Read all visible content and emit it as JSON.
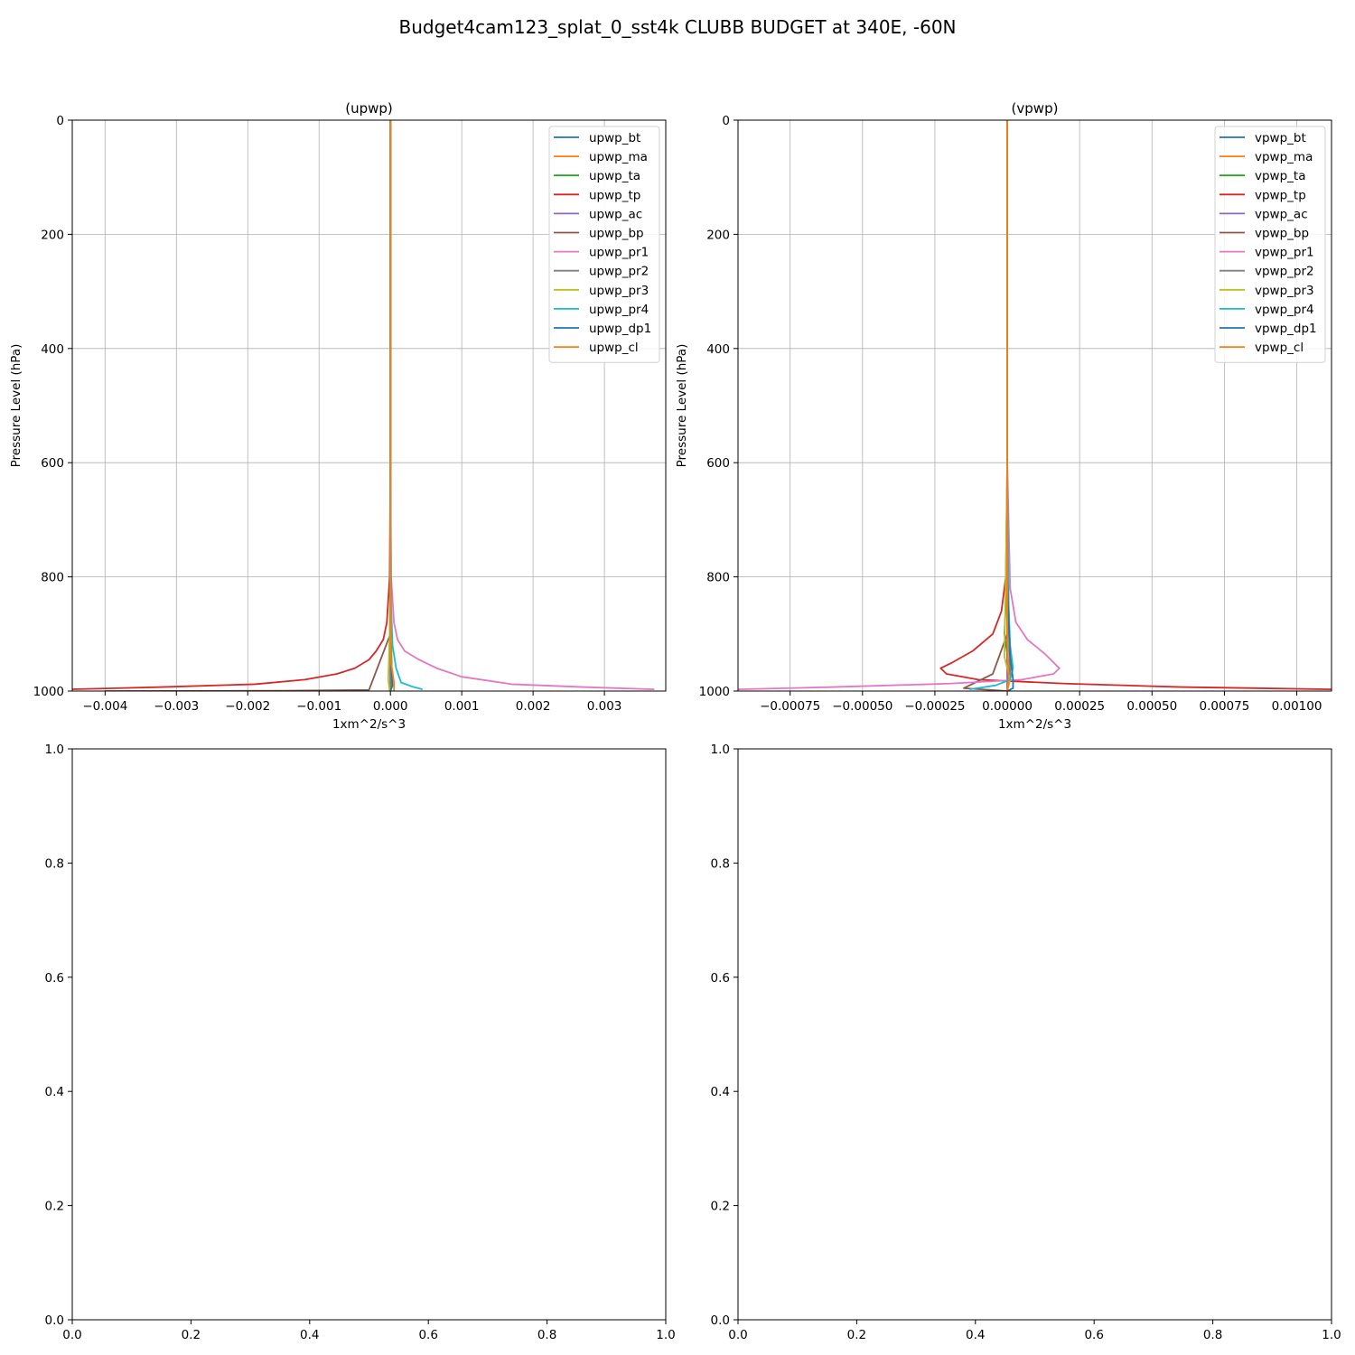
{
  "figure": {
    "suptitle": "Budget4cam123_splat_0_sst4k CLUBB BUDGET at 340E, -60N"
  },
  "colors": {
    "tab_blue": "#1f77b4",
    "tab_orange": "#ff7f0e",
    "tab_green": "#2ca02c",
    "tab_red": "#d62728",
    "tab_purple": "#9467bd",
    "tab_brown": "#8c564b",
    "tab_pink": "#e377c2",
    "tab_gray": "#7f7f7f",
    "tab_olive": "#bcbd22",
    "tab_cyan": "#17becf",
    "grid": "#b0b0b0"
  },
  "chart_data": [
    {
      "type": "line",
      "title": "(upwp)",
      "xlabel": "1xm^2/s^3",
      "ylabel": "Pressure Level (hPa)",
      "xlim": [
        -0.00446,
        0.00386
      ],
      "ylim": [
        1000,
        0
      ],
      "xticks": [
        -0.004,
        -0.003,
        -0.002,
        -0.001,
        0.0,
        0.001,
        0.002,
        0.003
      ],
      "xtick_labels": [
        "−0.004",
        "−0.003",
        "−0.002",
        "−0.001",
        "0.000",
        "0.001",
        "0.002",
        "0.003"
      ],
      "yticks": [
        0,
        200,
        400,
        600,
        800,
        1000
      ],
      "ytick_labels": [
        "0",
        "200",
        "400",
        "600",
        "800",
        "1000"
      ],
      "grid": true,
      "legend_position": "top-right",
      "series": [
        {
          "name": "upwp_bt",
          "color": "#1f77b4",
          "x": [
            0,
            0,
            0,
            0,
            0,
            0,
            0,
            0
          ],
          "y": [
            0,
            200,
            400,
            600,
            800,
            900,
            960,
            1000
          ]
        },
        {
          "name": "upwp_ma",
          "color": "#ff7f0e",
          "x": [
            0,
            0,
            0,
            0,
            0,
            0,
            0,
            0
          ],
          "y": [
            0,
            200,
            400,
            600,
            800,
            900,
            960,
            1000
          ]
        },
        {
          "name": "upwp_ta",
          "color": "#2ca02c",
          "x": [
            0,
            0,
            0,
            0,
            0,
            1e-05,
            2e-05,
            0
          ],
          "y": [
            0,
            200,
            400,
            600,
            800,
            900,
            970,
            1000
          ]
        },
        {
          "name": "upwp_tp",
          "color": "#d62728",
          "x": [
            0,
            0,
            0,
            0,
            -1e-05,
            -5e-05,
            -0.0001,
            -0.0002,
            -0.0003,
            -0.0005,
            -0.00075,
            -0.0012,
            -0.0019,
            -0.0032,
            -0.0045
          ],
          "y": [
            0,
            200,
            400,
            600,
            800,
            880,
            910,
            930,
            945,
            960,
            970,
            980,
            988,
            993,
            997
          ]
        },
        {
          "name": "upwp_ac",
          "color": "#9467bd",
          "x": [
            0,
            0,
            0,
            0,
            0,
            0
          ],
          "y": [
            0,
            200,
            400,
            600,
            800,
            1000
          ]
        },
        {
          "name": "upwp_bp",
          "color": "#8c564b",
          "x": [
            0,
            0,
            0,
            0,
            0,
            -0.0003,
            -0.0015,
            -0.004
          ],
          "y": [
            0,
            200,
            400,
            600,
            900,
            998,
            999.5,
            1000
          ]
        },
        {
          "name": "upwp_pr1",
          "color": "#e377c2",
          "x": [
            0,
            0,
            0,
            0,
            1e-05,
            5e-05,
            0.0001,
            0.0002,
            0.0004,
            0.00065,
            0.001,
            0.0017,
            0.0027,
            0.0037
          ],
          "y": [
            0,
            200,
            400,
            600,
            800,
            880,
            910,
            930,
            945,
            960,
            975,
            988,
            993,
            997
          ]
        },
        {
          "name": "upwp_pr2",
          "color": "#7f7f7f",
          "x": [
            0,
            0,
            0,
            0,
            0,
            5e-06,
            0
          ],
          "y": [
            0,
            200,
            400,
            600,
            800,
            970,
            1000
          ]
        },
        {
          "name": "upwp_pr3",
          "color": "#bcbd22",
          "x": [
            0,
            0,
            0,
            0,
            0,
            -1e-05,
            -3e-05,
            -1e-05
          ],
          "y": [
            0,
            200,
            400,
            600,
            800,
            900,
            980,
            1000
          ]
        },
        {
          "name": "upwp_pr4",
          "color": "#17becf",
          "x": [
            0,
            0,
            0,
            0,
            1e-05,
            3e-05,
            8e-05,
            0.00015,
            0.0003,
            0.00045
          ],
          "y": [
            0,
            200,
            400,
            600,
            850,
            920,
            960,
            985,
            992,
            997
          ]
        },
        {
          "name": "upwp_dp1",
          "color": "#1f77b4",
          "x": [
            0,
            0,
            0,
            0,
            0,
            5e-06,
            1e-05,
            2e-05,
            3e-05,
            0
          ],
          "y": [
            0,
            200,
            400,
            600,
            800,
            900,
            950,
            975,
            990,
            1000
          ]
        },
        {
          "name": "upwp_cl",
          "color": "#ff7f0e",
          "x": [
            0,
            0,
            0,
            0,
            0,
            1e-05,
            5e-05,
            5e-05
          ],
          "y": [
            0,
            200,
            400,
            600,
            800,
            950,
            985,
            1000
          ]
        }
      ]
    },
    {
      "type": "line",
      "title": "(vpwp)",
      "xlabel": "1xm^2/s^3",
      "ylabel": "Pressure Level (hPa)",
      "xlim": [
        -0.00093,
        0.00112
      ],
      "ylim": [
        1000,
        0
      ],
      "xticks": [
        -0.00075,
        -0.0005,
        -0.00025,
        0.0,
        0.00025,
        0.0005,
        0.00075,
        0.001
      ],
      "xtick_labels": [
        "−0.00075",
        "−0.00050",
        "−0.00025",
        "0.00000",
        "0.00025",
        "0.00050",
        "0.00075",
        "0.00100"
      ],
      "yticks": [
        0,
        200,
        400,
        600,
        800,
        1000
      ],
      "ytick_labels": [
        "0",
        "200",
        "400",
        "600",
        "800",
        "1000"
      ],
      "grid": true,
      "legend_position": "top-right",
      "series": [
        {
          "name": "vpwp_bt",
          "color": "#1f77b4",
          "x": [
            0,
            0,
            0,
            0,
            0,
            0
          ],
          "y": [
            0,
            200,
            400,
            600,
            800,
            1000
          ]
        },
        {
          "name": "vpwp_ma",
          "color": "#ff7f0e",
          "x": [
            0,
            0,
            0,
            0,
            0,
            0
          ],
          "y": [
            0,
            200,
            400,
            600,
            800,
            1000
          ]
        },
        {
          "name": "vpwp_ta",
          "color": "#2ca02c",
          "x": [
            0,
            0,
            0,
            0,
            0,
            -1e-05,
            1e-05,
            0
          ],
          "y": [
            0,
            200,
            400,
            600,
            800,
            900,
            970,
            1000
          ]
        },
        {
          "name": "vpwp_tp",
          "color": "#d62728",
          "x": [
            0,
            0,
            0,
            0,
            -5e-06,
            -2e-05,
            -5e-05,
            -0.00012,
            -0.00019,
            -0.00023,
            -0.00021,
            -0.0001,
            0.0002,
            0.0006,
            0.00112
          ],
          "y": [
            0,
            200,
            400,
            600,
            800,
            860,
            900,
            930,
            950,
            960,
            970,
            980,
            987,
            993,
            997
          ]
        },
        {
          "name": "vpwp_ac",
          "color": "#9467bd",
          "x": [
            0,
            0,
            0,
            0,
            0,
            0
          ],
          "y": [
            0,
            200,
            400,
            600,
            800,
            1000
          ]
        },
        {
          "name": "vpwp_bp",
          "color": "#8c564b",
          "x": [
            0,
            0,
            0,
            0,
            0,
            -5e-05,
            -0.00015,
            0
          ],
          "y": [
            0,
            200,
            400,
            600,
            900,
            970,
            995,
            1000
          ]
        },
        {
          "name": "vpwp_pr1",
          "color": "#e377c2",
          "x": [
            0,
            0,
            0,
            0,
            1e-05,
            3e-05,
            7e-05,
            0.00013,
            0.00018,
            0.00016,
            5e-05,
            -0.0002,
            -0.0006,
            -0.00093
          ],
          "y": [
            0,
            200,
            400,
            600,
            820,
            880,
            910,
            935,
            960,
            970,
            980,
            987,
            993,
            997
          ]
        },
        {
          "name": "vpwp_pr2",
          "color": "#7f7f7f",
          "x": [
            0,
            0,
            0,
            0,
            0,
            1e-05,
            0
          ],
          "y": [
            0,
            200,
            400,
            600,
            800,
            970,
            1000
          ]
        },
        {
          "name": "vpwp_pr3",
          "color": "#bcbd22",
          "x": [
            0,
            0,
            0,
            0,
            -5e-06,
            -1e-05,
            1e-05,
            0
          ],
          "y": [
            0,
            200,
            400,
            600,
            800,
            940,
            980,
            1000
          ]
        },
        {
          "name": "vpwp_pr4",
          "color": "#17becf",
          "x": [
            0,
            0,
            0,
            0,
            5e-06,
            1e-05,
            2e-05,
            1e-05,
            -4e-05,
            -0.00013
          ],
          "y": [
            0,
            200,
            400,
            600,
            850,
            920,
            960,
            980,
            990,
            997
          ]
        },
        {
          "name": "vpwp_dp1",
          "color": "#1f77b4",
          "x": [
            0,
            0,
            0,
            0,
            0,
            5e-06,
            1e-05,
            2e-05,
            2e-05,
            0
          ],
          "y": [
            0,
            200,
            400,
            600,
            800,
            880,
            940,
            980,
            995,
            1000
          ]
        },
        {
          "name": "vpwp_cl",
          "color": "#ff7f0e",
          "x": [
            0,
            0,
            0,
            0,
            0,
            0,
            5e-06,
            0
          ],
          "y": [
            0,
            200,
            400,
            600,
            700,
            900,
            980,
            1000
          ]
        }
      ]
    },
    {
      "type": "line",
      "title": "",
      "xlabel": "",
      "ylabel": "",
      "xlim": [
        0,
        1
      ],
      "ylim": [
        0,
        1
      ],
      "xticks": [
        0.0,
        0.2,
        0.4,
        0.6,
        0.8,
        1.0
      ],
      "xtick_labels": [
        "0.0",
        "0.2",
        "0.4",
        "0.6",
        "0.8",
        "1.0"
      ],
      "yticks": [
        0.0,
        0.2,
        0.4,
        0.6,
        0.8,
        1.0
      ],
      "ytick_labels": [
        "0.0",
        "0.2",
        "0.4",
        "0.6",
        "0.8",
        "1.0"
      ],
      "grid": false,
      "series": []
    },
    {
      "type": "line",
      "title": "",
      "xlabel": "",
      "ylabel": "",
      "xlim": [
        0,
        1
      ],
      "ylim": [
        0,
        1
      ],
      "xticks": [
        0.0,
        0.2,
        0.4,
        0.6,
        0.8,
        1.0
      ],
      "xtick_labels": [
        "0.0",
        "0.2",
        "0.4",
        "0.6",
        "0.8",
        "1.0"
      ],
      "yticks": [
        0.0,
        0.2,
        0.4,
        0.6,
        0.8,
        1.0
      ],
      "ytick_labels": [
        "0.0",
        "0.2",
        "0.4",
        "0.6",
        "0.8",
        "1.0"
      ],
      "grid": false,
      "series": []
    }
  ]
}
